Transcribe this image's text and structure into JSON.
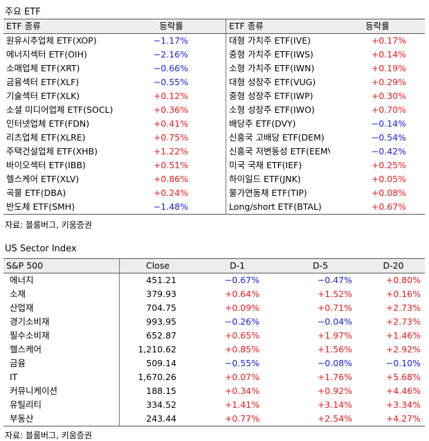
{
  "etf_section": {
    "title": "주요 ETF",
    "headers": [
      "ETF 종류",
      "등락률",
      "ETF 종류",
      "등락률"
    ],
    "left_rows": [
      {
        "name": "원유시추업체 ETF(XOP)",
        "change": "−1.17%"
      },
      {
        "name": "에너지섹터 ETF(OIH)",
        "change": "−2.16%"
      },
      {
        "name": "소매업체 ETF(XRT)",
        "change": "−0.66%"
      },
      {
        "name": "금융섹터 ETF(XLF)",
        "change": "−0.55%"
      },
      {
        "name": "기술섹터 ETF(XLK)",
        "change": "+0.12%"
      },
      {
        "name": "소셜 미디어업체 ETF(SOCL)",
        "change": "+0.36%"
      },
      {
        "name": "인터넷업체 ETF(FDN)",
        "change": "+0.41%"
      },
      {
        "name": "리츠업체 ETF(XLRE)",
        "change": "+0.75%"
      },
      {
        "name": "주택건설업체 ETF(XHB)",
        "change": "+1.22%"
      },
      {
        "name": "바이오섹터 ETF(IBB)",
        "change": "+0.51%"
      },
      {
        "name": "헬스케어 ETF(XLV)",
        "change": "+0.86%"
      },
      {
        "name": "곡물 ETF(DBA)",
        "change": "+0.24%"
      },
      {
        "name": "반도체 ETF(SMH)",
        "change": "−1.48%"
      }
    ],
    "right_rows": [
      {
        "name": "대형 가치주 ETF(IVE)",
        "change": "+0.17%"
      },
      {
        "name": "중형 가치주 ETF(IWS)",
        "change": "+0.14%"
      },
      {
        "name": "소형 가치주 ETF(IWN)",
        "change": "+0.19%"
      },
      {
        "name": "대형 성장주 ETF(VUG)",
        "change": "+0.29%"
      },
      {
        "name": "중형 성장주 ETF(IWP)",
        "change": "+0.30%"
      },
      {
        "name": "소형 성장주 ETF(IWO)",
        "change": "+0.70%"
      },
      {
        "name": "배당주 ETF(DVY)",
        "change": "−0.14%"
      },
      {
        "name": "신흥국 고배당 ETF(DEM)",
        "change": "−0.54%"
      },
      {
        "name": "신흥국 저변동성 ETF(EEMV)",
        "change": "−0.42%"
      },
      {
        "name": "미국 국채 ETF(IEF)",
        "change": "+0.25%"
      },
      {
        "name": "하이일드 ETF(JNK)",
        "change": "+0.05%"
      },
      {
        "name": "물가연동채 ETF(TIP)",
        "change": "+0.08%"
      },
      {
        "name": "Long/short ETF(BTAL)",
        "change": "+0.67%"
      }
    ],
    "source": "자료: 블룸버그, 키움증권"
  },
  "sector_section": {
    "title": "US Sector Index",
    "headers": [
      "S&P 500",
      "Close",
      "D-1",
      "D-5",
      "D-20"
    ],
    "rows": [
      {
        "name": "에너지",
        "close": "451.21",
        "d1": "−0.67%",
        "d5": "−0.47%",
        "d20": "+0.80%"
      },
      {
        "name": "소재",
        "close": "379.93",
        "d1": "+0.64%",
        "d5": "+1.52%",
        "d20": "+0.16%"
      },
      {
        "name": "산업재",
        "close": "704.75",
        "d1": "+0.09%",
        "d5": "+0.71%",
        "d20": "+2.73%"
      },
      {
        "name": "경기소비재",
        "close": "993.95",
        "d1": "−0.26%",
        "d5": "−0.04%",
        "d20": "+2.73%"
      },
      {
        "name": "필수소비재",
        "close": "652.87",
        "d1": "+0.65%",
        "d5": "+1.97%",
        "d20": "+1.46%"
      },
      {
        "name": "헬스케어",
        "close": "1,210.62",
        "d1": "+0.85%",
        "d5": "+1.56%",
        "d20": "+2.92%"
      },
      {
        "name": "금융",
        "close": "509.14",
        "d1": "−0.55%",
        "d5": "−0.08%",
        "d20": "−0.10%"
      },
      {
        "name": "IT",
        "close": "1,670.26",
        "d1": "+0.07%",
        "d5": "+1.76%",
        "d20": "+5.68%"
      },
      {
        "name": "커뮤니케이션",
        "close": "188.15",
        "d1": "+0.34%",
        "d5": "+0.92%",
        "d20": "+4.46%"
      },
      {
        "name": "유틸리티",
        "close": "334.52",
        "d1": "+1.41%",
        "d5": "+3.14%",
        "d20": "+3.34%"
      },
      {
        "name": "부동산",
        "close": "243.44",
        "d1": "+0.77%",
        "d5": "+2.54%",
        "d20": "+4.27%"
      }
    ],
    "source": "자료: 블룸버그, 키움증권"
  },
  "colors": {
    "positive": "#e8191c",
    "negative": "#1b20d8",
    "header_bg": "#ededed"
  }
}
